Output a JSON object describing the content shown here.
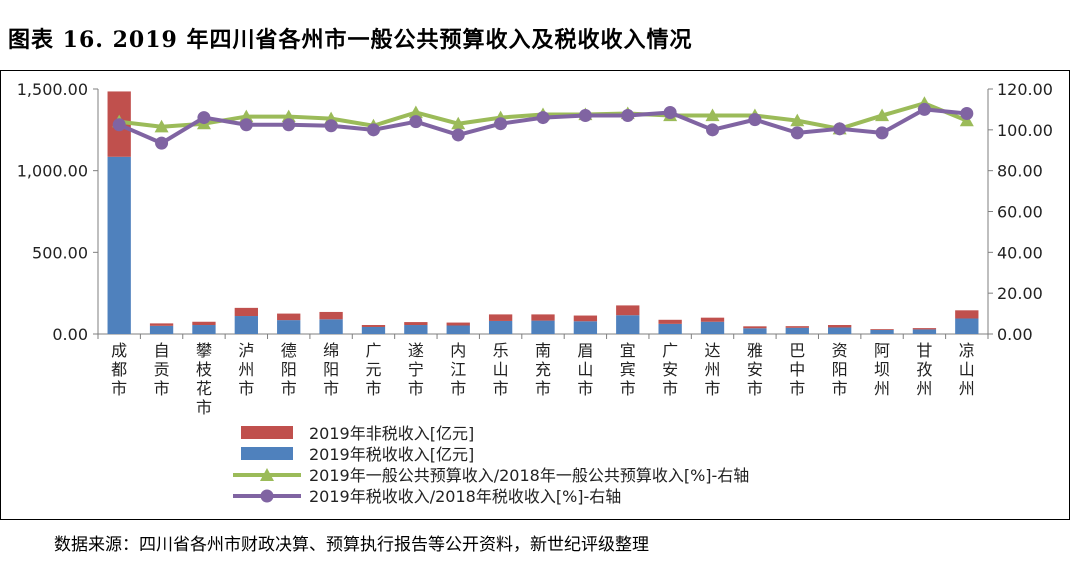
{
  "title": "图表 16. 2019 年四川省各州市一般公共预算收入及税收收入情况",
  "source": "数据来源：四川省各州市财政决算、预算执行报告等公开资料，新世纪评级整理",
  "chart_data": {
    "type": "bar",
    "stacked": true,
    "categories": [
      "成都市",
      "自贡市",
      "攀枝花市",
      "泸州市",
      "德阳市",
      "绵阳市",
      "广元市",
      "遂宁市",
      "内江市",
      "乐山市",
      "南充市",
      "眉山市",
      "宜宾市",
      "广安市",
      "达州市",
      "雅安市",
      "巴中市",
      "资阳市",
      "阿坝州",
      "甘孜州",
      "凉山州"
    ],
    "y_left": {
      "ticks": [
        "0.00",
        "500.00",
        "1,000.00",
        "1,500.00"
      ],
      "ylim": [
        0,
        1500
      ]
    },
    "y_right": {
      "ticks": [
        "0.00",
        "20.00",
        "40.00",
        "60.00",
        "80.00",
        "100.00",
        "120.00"
      ],
      "ylim": [
        0,
        120
      ]
    },
    "series": [
      {
        "name": "2019年非税收入[亿元]",
        "type": "bar",
        "axis": "left",
        "color": "#c0504d",
        "values": [
          400,
          15,
          20,
          50,
          40,
          45,
          12,
          18,
          18,
          40,
          38,
          35,
          60,
          25,
          25,
          12,
          10,
          15,
          5,
          8,
          50
        ]
      },
      {
        "name": "2019年税收收入[亿元]",
        "type": "bar",
        "axis": "left",
        "color": "#4f81bd",
        "values": [
          1085,
          50,
          55,
          110,
          85,
          90,
          43,
          55,
          52,
          80,
          82,
          78,
          115,
          62,
          75,
          35,
          38,
          40,
          25,
          28,
          95
        ]
      },
      {
        "name": "2019年一般公共预算收入/2018年一般公共预算收入[%]-右轴",
        "type": "line",
        "axis": "right",
        "color": "#9bbb59",
        "marker": "triangle",
        "values": [
          104,
          101.5,
          103,
          106.5,
          106.5,
          105.5,
          102,
          108.5,
          103,
          106,
          107.5,
          107.5,
          108,
          107,
          107,
          107,
          104.5,
          100.5,
          107,
          113,
          104.5
        ]
      },
      {
        "name": "2019年税收收入/2018年税收收入[%]-右轴",
        "type": "line",
        "axis": "right",
        "color": "#8064a2",
        "marker": "circle",
        "values": [
          102.5,
          93.5,
          106,
          102.5,
          102.5,
          102,
          100,
          104,
          97.5,
          103,
          106,
          107,
          107,
          108.5,
          100,
          105,
          98.5,
          100.5,
          98.5,
          110,
          108
        ]
      }
    ]
  }
}
